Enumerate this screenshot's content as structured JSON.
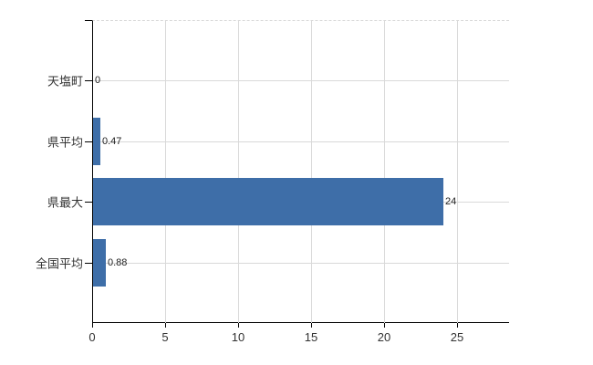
{
  "chart_data": {
    "type": "bar",
    "orientation": "horizontal",
    "title": "",
    "categories": [
      "天塩町",
      "県平均",
      "県最大",
      "全国平均"
    ],
    "values": [
      0,
      0.47,
      24,
      0.88
    ],
    "value_labels": [
      "0",
      "0.47",
      "24",
      "0.88"
    ],
    "x_tick_values": [
      0,
      5,
      10,
      15,
      20,
      25
    ],
    "x_tick_labels": [
      "0",
      "5",
      "10",
      "15",
      "20",
      "25"
    ],
    "xlim": [
      0,
      28.5625
    ],
    "grid": true,
    "legend_position": "none",
    "colors": {
      "bar": "#3e6ea8",
      "grid": "#d9d9d9",
      "axis": "#000000",
      "tick_label": "#333333",
      "category_label": "#333333",
      "value_label": "#222222",
      "background": "#ffffff"
    }
  }
}
